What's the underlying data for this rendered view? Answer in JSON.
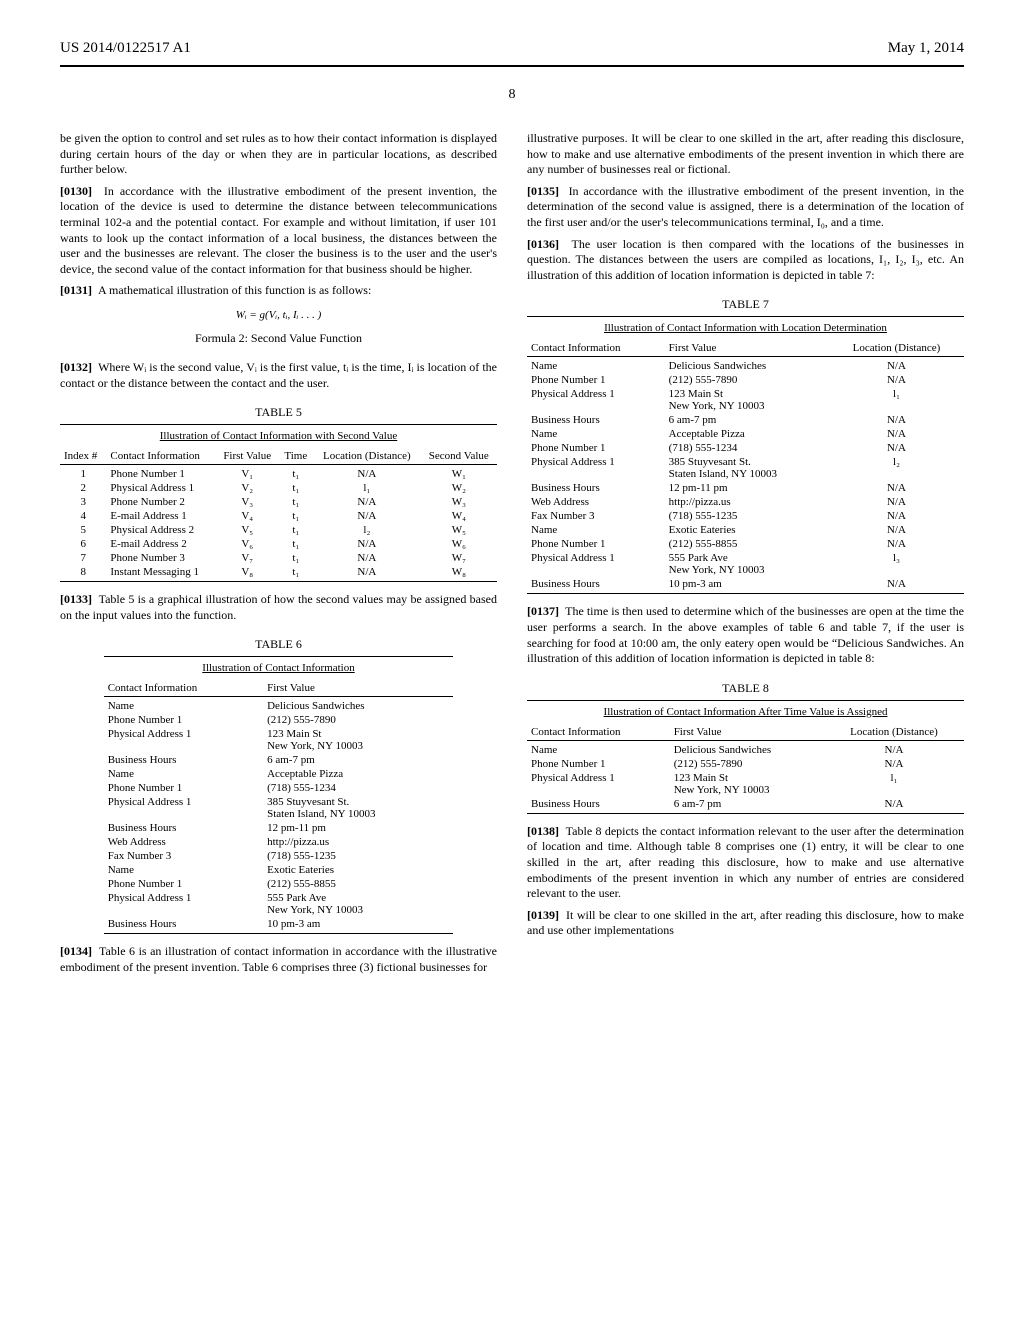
{
  "header": {
    "pub_number": "US 2014/0122517 A1",
    "date": "May 1, 2014",
    "page_number": "8"
  },
  "col1": {
    "p_intro": "be given the option to control and set rules as to how their contact information is displayed during certain hours of the day or when they are in particular locations, as described further below.",
    "p0130_num": "[0130]",
    "p0130": "In accordance with the illustrative embodiment of the present invention, the location of the device is used to determine the distance between telecommunications terminal 102-a and the potential contact. For example and without limitation, if user 101 wants to look up the contact information of a local business, the distances between the user and the businesses are relevant. The closer the business is to the user and the user's device, the second value of the contact information for that business should be higher.",
    "p0131_num": "[0131]",
    "p0131": "A mathematical illustration of this function is as follows:",
    "formula": "Wᵢ = g(Vᵢ, tᵢ, Iᵢ . . . )",
    "formula_label": "Formula 2: Second Value Function",
    "p0132_num": "[0132]",
    "p0132": "Where Wᵢ is the second value, Vᵢ is the first value, tᵢ is the time, Iᵢ is location of the contact or the distance between the contact and the user.",
    "table5_label": "TABLE 5",
    "table5_caption": "Illustration of Contact Information with Second Value",
    "table5_headers": [
      "Index #",
      "Contact Information",
      "First Value",
      "Time",
      "Location (Distance)",
      "Second Value"
    ],
    "table5_rows": [
      [
        "1",
        "Phone Number 1",
        "V₁",
        "t₁",
        "N/A",
        "W₁"
      ],
      [
        "2",
        "Physical Address 1",
        "V₂",
        "t₁",
        "l₁",
        "W₂"
      ],
      [
        "3",
        "Phone Number 2",
        "V₃",
        "t₁",
        "N/A",
        "W₃"
      ],
      [
        "4",
        "E-mail Address 1",
        "V₄",
        "t₁",
        "N/A",
        "W₄"
      ],
      [
        "5",
        "Physical Address 2",
        "V₅",
        "t₁",
        "l₂",
        "W₅"
      ],
      [
        "6",
        "E-mail Address 2",
        "V₆",
        "t₁",
        "N/A",
        "W₆"
      ],
      [
        "7",
        "Phone Number 3",
        "V₇",
        "t₁",
        "N/A",
        "W₇"
      ],
      [
        "8",
        "Instant Messaging 1",
        "V₈",
        "t₁",
        "N/A",
        "W₈"
      ]
    ],
    "p0133_num": "[0133]",
    "p0133": "Table 5 is a graphical illustration of how the second values may be assigned based on the input values into the function.",
    "table6_label": "TABLE 6",
    "table6_caption": "Illustration of Contact Information",
    "table6_headers": [
      "Contact Information",
      "First Value"
    ],
    "table6_rows": [
      [
        "Name",
        "Delicious Sandwiches"
      ],
      [
        "Phone Number 1",
        "(212) 555-7890"
      ],
      [
        "Physical Address 1",
        "123 Main St\nNew York, NY 10003"
      ],
      [
        "Business Hours",
        "6 am-7 pm"
      ],
      [
        "Name",
        "Acceptable Pizza"
      ],
      [
        "Phone Number 1",
        "(718) 555-1234"
      ],
      [
        "Physical Address 1",
        "385 Stuyvesant St.\nStaten Island, NY 10003"
      ],
      [
        "Business Hours",
        "12 pm-11 pm"
      ],
      [
        "Web Address",
        "http://pizza.us"
      ],
      [
        "Fax Number 3",
        "(718) 555-1235"
      ],
      [
        "Name",
        "Exotic Eateries"
      ],
      [
        "Phone Number 1",
        "(212) 555-8855"
      ],
      [
        "Physical Address 1",
        "555 Park Ave\nNew York, NY 10003"
      ],
      [
        "Business Hours",
        "10 pm-3 am"
      ]
    ],
    "p0134_num": "[0134]",
    "p0134": "Table 6 is an illustration of contact information in accordance with the illustrative embodiment of the present invention. Table 6 comprises three (3) fictional businesses for"
  },
  "col2": {
    "p_cont": "illustrative purposes. It will be clear to one skilled in the art, after reading this disclosure, how to make and use alternative embodiments of the present invention in which there are any number of businesses real or fictional.",
    "p0135_num": "[0135]",
    "p0135": "In accordance with the illustrative embodiment of the present invention, in the determination of the second value is assigned, there is a determination of the location of the first user and/or the user's telecommunications terminal, I₀, and a time.",
    "p0136_num": "[0136]",
    "p0136": "The user location is then compared with the locations of the businesses in question. The distances between the users are compiled as locations, I₁, I₂, I₃, etc. An illustration of this addition of location information is depicted in table 7:",
    "table7_label": "TABLE 7",
    "table7_caption": "Illustration of Contact Information with Location Determination",
    "table7_headers": [
      "Contact Information",
      "First Value",
      "Location (Distance)"
    ],
    "table7_rows": [
      [
        "Name",
        "Delicious Sandwiches",
        "N/A"
      ],
      [
        "Phone Number 1",
        "(212) 555-7890",
        "N/A"
      ],
      [
        "Physical Address 1",
        "123 Main St\nNew York, NY 10003",
        "l₁"
      ],
      [
        "Business Hours",
        "6 am-7 pm",
        "N/A"
      ],
      [
        "Name",
        "Acceptable Pizza",
        "N/A"
      ],
      [
        "Phone Number 1",
        "(718) 555-1234",
        "N/A"
      ],
      [
        "Physical Address 1",
        "385 Stuyvesant St.\nStaten Island, NY 10003",
        "l₂"
      ],
      [
        "Business Hours",
        "12 pm-11 pm",
        "N/A"
      ],
      [
        "Web Address",
        "http://pizza.us",
        "N/A"
      ],
      [
        "Fax Number 3",
        "(718) 555-1235",
        "N/A"
      ],
      [
        "Name",
        "Exotic Eateries",
        "N/A"
      ],
      [
        "Phone Number 1",
        "(212) 555-8855",
        "N/A"
      ],
      [
        "Physical Address 1",
        "555 Park Ave\nNew York, NY 10003",
        "l₃"
      ],
      [
        "Business Hours",
        "10 pm-3 am",
        "N/A"
      ]
    ],
    "p0137_num": "[0137]",
    "p0137": "The time is then used to determine which of the businesses are open at the time the user performs a search. In the above examples of table 6 and table 7, if the user is searching for food at 10:00 am, the only eatery open would be “Delicious Sandwiches. An illustration of this addition of location information is depicted in table 8:",
    "table8_label": "TABLE 8",
    "table8_caption": "Illustration of Contact Information After Time Value is Assigned",
    "table8_headers": [
      "Contact Information",
      "First Value",
      "Location (Distance)"
    ],
    "table8_rows": [
      [
        "Name",
        "Delicious Sandwiches",
        "N/A"
      ],
      [
        "Phone Number 1",
        "(212) 555-7890",
        "N/A"
      ],
      [
        "Physical Address 1",
        "123 Main St\nNew York, NY 10003",
        "l₁"
      ],
      [
        "Business Hours",
        "6 am-7 pm",
        "N/A"
      ]
    ],
    "p0138_num": "[0138]",
    "p0138": "Table 8 depicts the contact information relevant to the user after the determination of location and time. Although table 8 comprises one (1) entry, it will be clear to one skilled in the art, after reading this disclosure, how to make and use alternative embodiments of the present invention in which any number of entries are considered relevant to the user.",
    "p0139_num": "[0139]",
    "p0139": "It will be clear to one skilled in the art, after reading this disclosure, how to make and use other implementations"
  }
}
